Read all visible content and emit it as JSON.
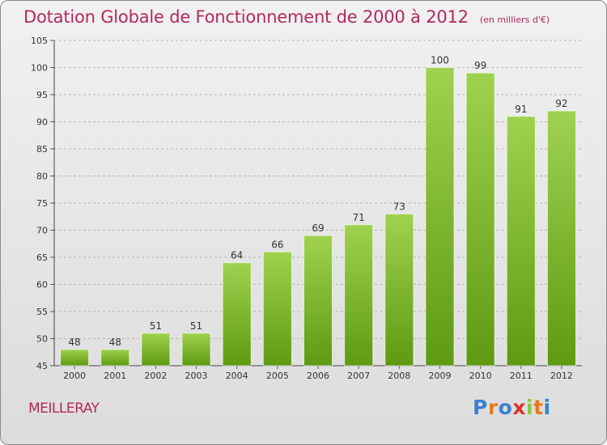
{
  "header": {
    "title": "Dotation Globale de Fonctionnement de 2000 à 2012",
    "unit": "(en milliers d'€)"
  },
  "footer": {
    "commune": "MEILLERAY",
    "logo_text": "Proxiti"
  },
  "colors": {
    "title": "#b22a5c",
    "bar_top": "#9fd24f",
    "bar_bottom": "#5e9a12",
    "grid": "#b5b5b5"
  },
  "chart_data": {
    "type": "bar",
    "categories": [
      "2000",
      "2001",
      "2002",
      "2003",
      "2004",
      "2005",
      "2006",
      "2007",
      "2008",
      "2009",
      "2010",
      "2011",
      "2012"
    ],
    "values": [
      48,
      48,
      51,
      51,
      64,
      66,
      69,
      71,
      73,
      100,
      99,
      91,
      92
    ],
    "data_labels": [
      "48",
      "48",
      "51",
      "51",
      "64",
      "66",
      "69",
      "71",
      "73",
      "100",
      "99",
      "91",
      "92"
    ],
    "title": "Dotation Globale de Fonctionnement de 2000 à 2012",
    "xlabel": "",
    "ylabel": "",
    "ylim": [
      45,
      105
    ],
    "yticks": [
      45,
      50,
      55,
      60,
      65,
      70,
      75,
      80,
      85,
      90,
      95,
      100,
      105
    ],
    "grid": true,
    "legend": "none"
  }
}
